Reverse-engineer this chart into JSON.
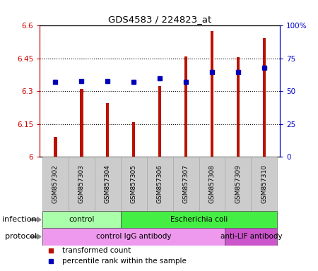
{
  "title": "GDS4583 / 224823_at",
  "samples": [
    "GSM857302",
    "GSM857303",
    "GSM857304",
    "GSM857305",
    "GSM857306",
    "GSM857307",
    "GSM857308",
    "GSM857309",
    "GSM857310"
  ],
  "transformed_count": [
    6.09,
    6.31,
    6.245,
    6.16,
    6.325,
    6.46,
    6.575,
    6.455,
    6.545
  ],
  "percentile_rank": [
    57,
    58,
    57.5,
    57,
    60,
    57,
    65,
    65,
    68
  ],
  "ylim_left": [
    6.0,
    6.6
  ],
  "ylim_right": [
    0,
    100
  ],
  "yticks_left": [
    6.0,
    6.15,
    6.3,
    6.45,
    6.6
  ],
  "yticks_right": [
    0,
    25,
    50,
    75,
    100
  ],
  "ytick_labels_left": [
    "6",
    "6.15",
    "6.3",
    "6.45",
    "6.6"
  ],
  "ytick_labels_right": [
    "0",
    "25",
    "50",
    "75",
    "100%"
  ],
  "bar_color": "#bb1100",
  "dot_color": "#0000bb",
  "bar_baseline": 6.0,
  "bar_width": 0.12,
  "dot_size": 4.5,
  "plot_bg": "#ffffff",
  "tick_label_color_left": "#cc0000",
  "tick_label_color_right": "#0000cc",
  "inf_groups": [
    {
      "label": "control",
      "start": 0,
      "end": 2,
      "color": "#aaffaa"
    },
    {
      "label": "Escherichia coli",
      "start": 3,
      "end": 8,
      "color": "#44ee44"
    }
  ],
  "prot_groups": [
    {
      "label": "control IgG antibody",
      "start": 0,
      "end": 6,
      "color": "#ee99ee"
    },
    {
      "label": "anti-LIF antibody",
      "start": 7,
      "end": 8,
      "color": "#cc55cc"
    }
  ],
  "legend_items": [
    "transformed count",
    "percentile rank within the sample"
  ],
  "legend_colors": [
    "#bb1100",
    "#0000bb"
  ],
  "background_color": "#ffffff"
}
